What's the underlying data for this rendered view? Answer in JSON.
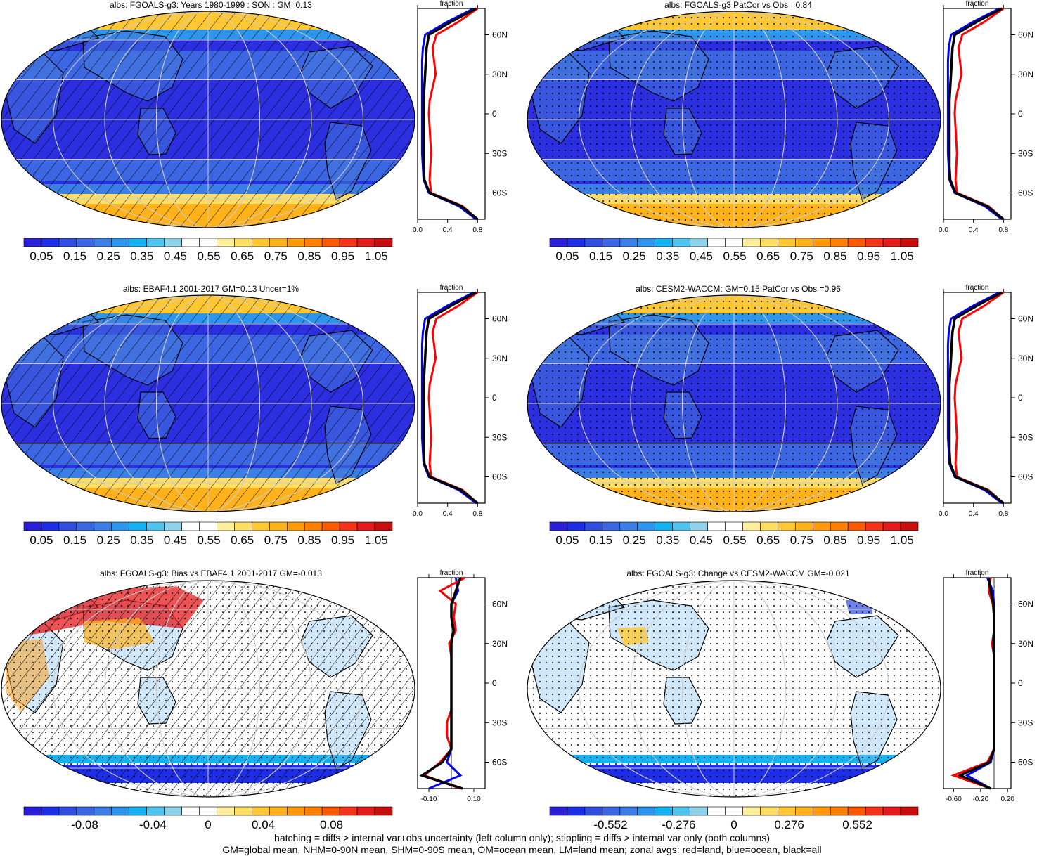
{
  "panels": [
    {
      "id": "p1",
      "title": "albs: FGOALS-g3: Years 1980-1999 : SON : GM=0.13",
      "kind": "abs",
      "hatch": true,
      "stipple": false
    },
    {
      "id": "p2",
      "title": "albs: FGOALS-g3 PatCor vs Obs =0.84",
      "kind": "abs",
      "hatch": false,
      "stipple": true
    },
    {
      "id": "p3",
      "title": "albs: EBAF4.1 2001-2017 GM=0.13 Uncer=1%",
      "kind": "abs",
      "hatch": true,
      "stipple": false
    },
    {
      "id": "p4",
      "title": "albs: CESM2-WACCM: GM=0.15 PatCor vs Obs =0.96",
      "kind": "abs",
      "hatch": false,
      "stipple": true
    },
    {
      "id": "p5",
      "title": "albs: FGOALS-g3: Bias vs EBAF4.1 2001-2017  GM=-0.013",
      "kind": "diff",
      "hatch": true,
      "stipple": true
    },
    {
      "id": "p6",
      "title": "albs: FGOALS-g3: Change vs CESM2-WACCM GM=-0.021",
      "kind": "diff",
      "hatch": false,
      "stipple": true
    }
  ],
  "zonal": {
    "title": "fraction",
    "lat_labels": [
      "60N",
      "30N",
      "0",
      "30S",
      "60S"
    ],
    "abs_ticks": [
      "0.0",
      "0.4",
      "0.8"
    ],
    "bias_ticks": [
      "-0.10",
      "0.10"
    ],
    "change_ticks": [
      "-0.60",
      "-0.20",
      "0.20"
    ]
  },
  "colorbars": {
    "abs_labels": [
      "0.05",
      "0.15",
      "0.25",
      "0.35",
      "0.45",
      "0.55",
      "0.65",
      "0.75",
      "0.85",
      "0.95",
      "1.05"
    ],
    "bias_labels": [
      "-0.08",
      "-0.04",
      "0",
      "0.04",
      "0.08"
    ],
    "change_labels": [
      "-0.552",
      "-0.276",
      "0",
      "0.276",
      "0.552"
    ],
    "colors": [
      "#2a1fd8",
      "#1e2ee6",
      "#2f4ee0",
      "#3d66e3",
      "#3b7fe6",
      "#2b96ec",
      "#14b2f0",
      "#4fc4ee",
      "#8fd3ea",
      "#ffffff",
      "#ffffff",
      "#ffee9a",
      "#ffde66",
      "#ffc832",
      "#ffb219",
      "#ff9a0a",
      "#ff7f00",
      "#ff5a00",
      "#f5321a",
      "#e41a1c",
      "#c80d0d"
    ],
    "palette": {
      "land": "#ff0000",
      "ocean": "#0000ff",
      "all": "#000000"
    }
  },
  "footer": {
    "line1": "hatching = diffs > internal var+obs uncertainty (left column only); stippling = diffs > internal var only (both columns)",
    "line2": "GM=global mean, NHM=0-90N mean, SHM=0-90S mean, OM=ocean mean, LM=land mean; zonal avgs: red=land, blue=ocean, black=all"
  },
  "chart_data": {
    "type": "map-panels-with-zonal-profiles",
    "variable": "albs",
    "zonal_abs": {
      "lat": [
        80,
        70,
        60,
        50,
        40,
        30,
        20,
        10,
        0,
        -10,
        -20,
        -30,
        -40,
        -50,
        -60,
        -70,
        -80
      ],
      "land": [
        0.8,
        0.55,
        0.25,
        0.2,
        0.22,
        0.24,
        0.2,
        0.16,
        0.15,
        0.16,
        0.17,
        0.18,
        0.17,
        0.16,
        0.18,
        0.6,
        0.8
      ],
      "ocean": [
        0.75,
        0.4,
        0.1,
        0.07,
        0.06,
        0.06,
        0.06,
        0.06,
        0.06,
        0.06,
        0.06,
        0.06,
        0.07,
        0.08,
        0.15,
        0.55,
        0.78
      ],
      "all": [
        0.78,
        0.45,
        0.15,
        0.12,
        0.11,
        0.1,
        0.09,
        0.08,
        0.08,
        0.08,
        0.08,
        0.08,
        0.08,
        0.09,
        0.16,
        0.58,
        0.8
      ]
    },
    "zonal_bias": {
      "lat": [
        80,
        70,
        60,
        50,
        40,
        30,
        20,
        10,
        0,
        -10,
        -20,
        -30,
        -40,
        -50,
        -60,
        -70,
        -80
      ],
      "land": [
        0.06,
        -0.05,
        0.02,
        0.01,
        0.02,
        -0.01,
        0.0,
        0.0,
        0.0,
        0.0,
        0.0,
        -0.02,
        -0.02,
        0.0,
        -0.05,
        -0.12,
        0.04
      ],
      "ocean": [
        0.02,
        0.03,
        0.0,
        0.0,
        0.01,
        0.0,
        0.0,
        0.0,
        0.0,
        0.0,
        0.0,
        0.0,
        0.0,
        0.0,
        -0.02,
        0.04,
        -0.1
      ],
      "all": [
        0.04,
        0.02,
        0.0,
        0.0,
        0.01,
        0.0,
        0.0,
        0.0,
        0.0,
        0.0,
        0.0,
        0.0,
        0.0,
        0.0,
        -0.04,
        -0.13,
        0.05
      ]
    },
    "zonal_change": {
      "lat": [
        80,
        70,
        60,
        50,
        40,
        30,
        20,
        10,
        0,
        -10,
        -20,
        -30,
        -40,
        -50,
        -60,
        -70,
        -80
      ],
      "land": [
        -0.05,
        -0.08,
        -0.02,
        0.0,
        0.0,
        -0.03,
        0.0,
        0.0,
        0.0,
        0.0,
        0.0,
        0.0,
        0.0,
        0.0,
        -0.1,
        -0.6,
        -0.05
      ],
      "ocean": [
        -0.1,
        -0.02,
        0.0,
        0.0,
        0.0,
        0.0,
        0.0,
        0.0,
        0.0,
        0.0,
        0.0,
        0.0,
        0.0,
        0.0,
        -0.05,
        -0.4,
        -0.05
      ],
      "all": [
        -0.08,
        -0.05,
        -0.01,
        0.0,
        0.0,
        -0.01,
        0.0,
        0.0,
        0.0,
        0.0,
        0.0,
        0.0,
        0.0,
        0.0,
        -0.07,
        -0.5,
        -0.05
      ]
    }
  }
}
